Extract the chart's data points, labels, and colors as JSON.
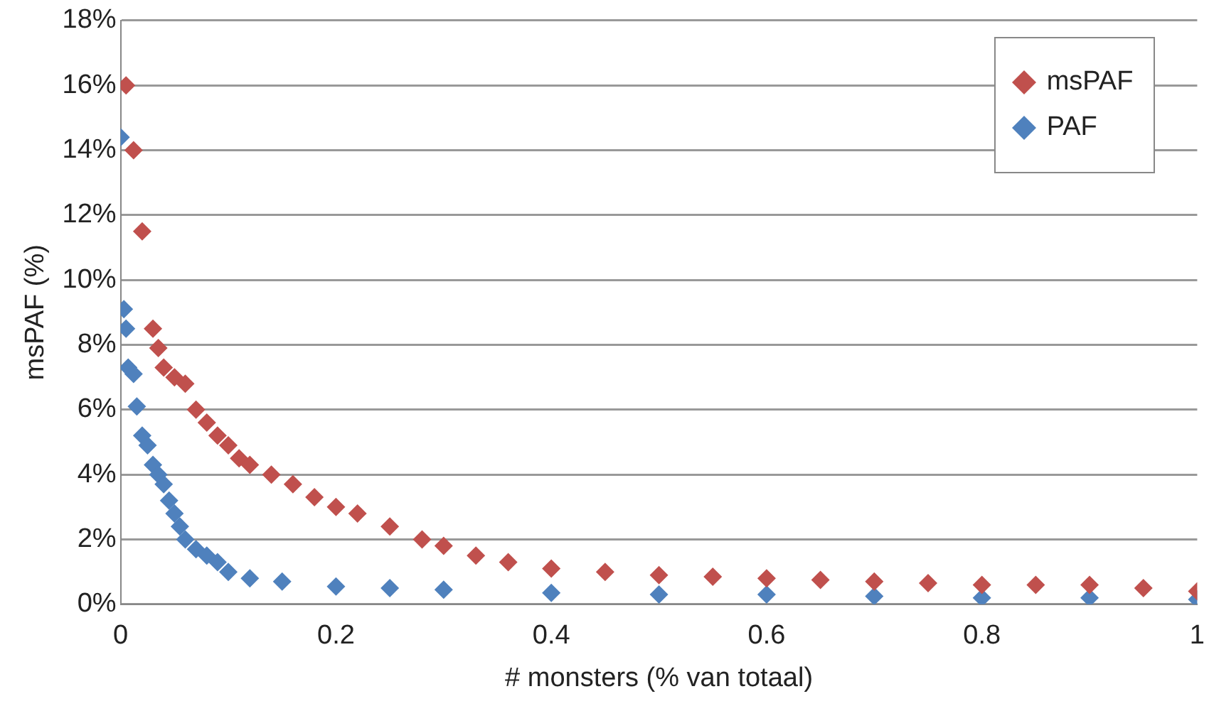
{
  "chart_data": {
    "type": "scatter",
    "xlabel": "# monsters (% van totaal)",
    "ylabel": "msPAF (%)",
    "xlim": [
      0,
      1
    ],
    "xticks": [
      0,
      0.2,
      0.4,
      0.6,
      0.8,
      1
    ],
    "ylim": [
      0,
      18
    ],
    "yticks": [
      {
        "value": 0,
        "label": "0%"
      },
      {
        "value": 2,
        "label": "2%"
      },
      {
        "value": 4,
        "label": "4%"
      },
      {
        "value": 6,
        "label": "6%"
      },
      {
        "value": 8,
        "label": "8%"
      },
      {
        "value": 10,
        "label": "10%"
      },
      {
        "value": 12,
        "label": "12%"
      },
      {
        "value": 14,
        "label": "14%"
      },
      {
        "value": 16,
        "label": "16%"
      },
      {
        "value": 18,
        "label": "18%"
      }
    ],
    "grid": "y",
    "legend": "top right",
    "marker": "diamond",
    "series": [
      {
        "name": "msPAF",
        "color": "#c0504d",
        "x": [
          0.005,
          0.012,
          0.02,
          0.03,
          0.035,
          0.04,
          0.05,
          0.06,
          0.07,
          0.08,
          0.09,
          0.1,
          0.11,
          0.12,
          0.14,
          0.16,
          0.18,
          0.2,
          0.22,
          0.25,
          0.28,
          0.3,
          0.33,
          0.36,
          0.4,
          0.45,
          0.5,
          0.55,
          0.6,
          0.65,
          0.7,
          0.75,
          0.8,
          0.85,
          0.9,
          0.95,
          1.0
        ],
        "values": [
          16,
          14,
          11.5,
          8.5,
          7.9,
          7.3,
          7.0,
          6.8,
          6.0,
          5.6,
          5.2,
          4.9,
          4.5,
          4.3,
          4.0,
          3.7,
          3.3,
          3.0,
          2.8,
          2.4,
          2.0,
          1.8,
          1.5,
          1.3,
          1.1,
          1.0,
          0.9,
          0.85,
          0.8,
          0.75,
          0.7,
          0.65,
          0.6,
          0.6,
          0.6,
          0.5,
          0.4
        ]
      },
      {
        "name": "PAF",
        "color": "#4f81bd",
        "x": [
          0,
          0.003,
          0.005,
          0.007,
          0.012,
          0.015,
          0.02,
          0.025,
          0.03,
          0.035,
          0.04,
          0.045,
          0.05,
          0.055,
          0.06,
          0.07,
          0.08,
          0.09,
          0.1,
          0.12,
          0.15,
          0.2,
          0.25,
          0.3,
          0.4,
          0.5,
          0.6,
          0.7,
          0.8,
          0.9,
          1.0
        ],
        "values": [
          14.4,
          9.1,
          8.5,
          7.3,
          7.1,
          6.1,
          5.2,
          4.9,
          4.3,
          4.0,
          3.7,
          3.2,
          2.8,
          2.4,
          2.0,
          1.7,
          1.5,
          1.3,
          1.0,
          0.8,
          0.7,
          0.55,
          0.5,
          0.45,
          0.35,
          0.3,
          0.3,
          0.25,
          0.2,
          0.2,
          0.15
        ]
      }
    ]
  }
}
